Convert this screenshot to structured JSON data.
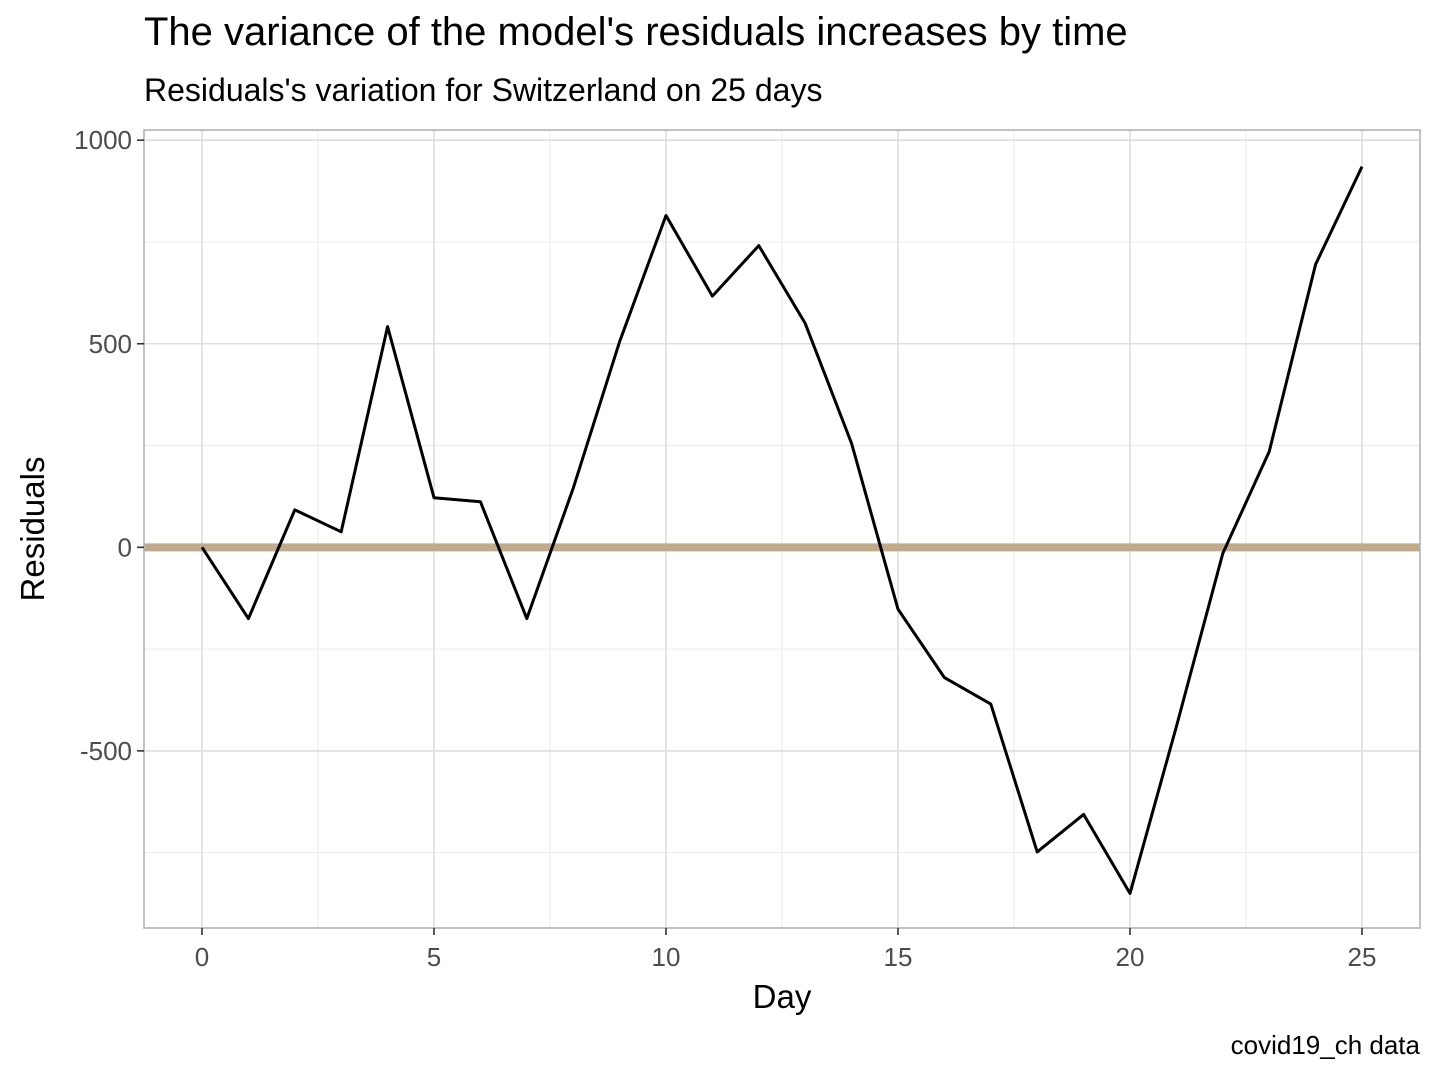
{
  "chart_data": {
    "type": "line",
    "title": "The variance of the model's residuals increases by time",
    "subtitle": "Residuals's variation for Switzerland on 25 days",
    "caption": "covid19_ch data",
    "xlabel": "Day",
    "ylabel": "Residuals",
    "xlim": [
      -1.25,
      26.25
    ],
    "ylim": [
      -935,
      1025
    ],
    "x_ticks": [
      0,
      5,
      10,
      15,
      20,
      25
    ],
    "x_tick_labels": [
      "0",
      "5",
      "10",
      "15",
      "20",
      "25"
    ],
    "y_ticks": [
      -500,
      0,
      500,
      1000
    ],
    "y_tick_labels": [
      "-500",
      "0",
      "500",
      "1000"
    ],
    "grid": true,
    "reference_line": {
      "y": 0,
      "color": "#BFAA8C"
    },
    "series": [
      {
        "color": "#000000",
        "x": [
          0,
          1,
          2,
          3,
          4,
          5,
          6,
          7,
          8,
          9,
          10,
          11,
          12,
          13,
          14,
          15,
          16,
          17,
          18,
          19,
          20,
          21,
          22,
          23,
          24,
          25
        ],
        "y": [
          0,
          -175,
          92,
          38,
          542,
          122,
          112,
          -175,
          145,
          505,
          815,
          617,
          741,
          550,
          255,
          -152,
          -320,
          -385,
          -748,
          -656,
          -850,
          -440,
          -15,
          235,
          695,
          935
        ]
      }
    ]
  }
}
